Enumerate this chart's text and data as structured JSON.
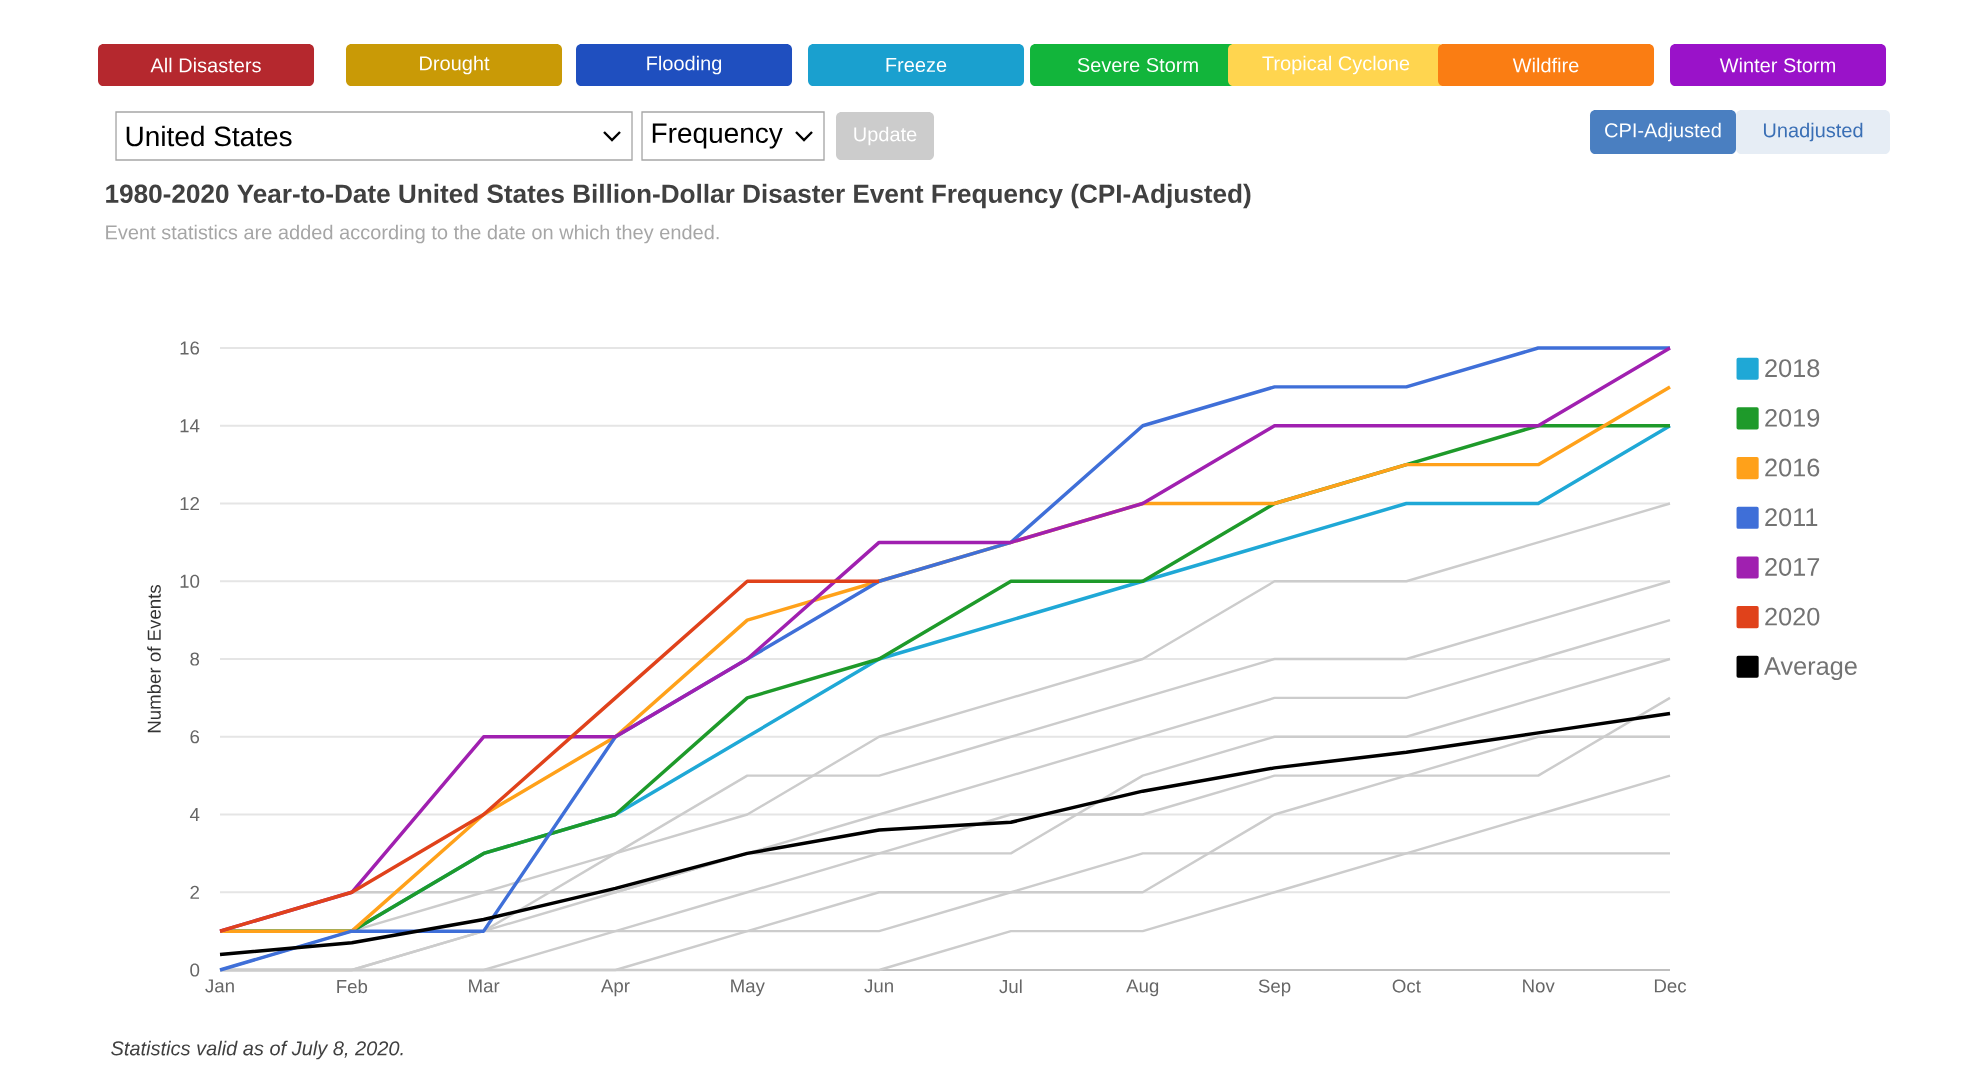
{
  "chart_data": {
    "type": "line",
    "title": "1980-2020 Year-to-Date United States Billion-Dollar Disaster Event Frequency (CPI-Adjusted)",
    "subtitle": "Event statistics are added according to the date on which they ended.",
    "ylabel": "Number of Events",
    "categories": [
      "Jan",
      "Feb",
      "Mar",
      "Apr",
      "May",
      "Jun",
      "Jul",
      "Aug",
      "Sep",
      "Oct",
      "Nov",
      "Dec"
    ],
    "ylim": [
      0,
      16
    ],
    "yticks": [
      0,
      2,
      4,
      6,
      8,
      10,
      12,
      14,
      16
    ],
    "grid": "y",
    "legend": "right",
    "marker": "none",
    "line_style": "solid",
    "series": [
      {
        "color": "#cccccc",
        "values": [
          0,
          0,
          0,
          1,
          1,
          2,
          2,
          3,
          3,
          3,
          4,
          5
        ]
      },
      {
        "color": "#cccccc",
        "values": [
          0,
          1,
          1,
          1,
          2,
          3,
          4,
          4,
          5,
          5,
          6,
          6
        ]
      },
      {
        "color": "#cccccc",
        "values": [
          0,
          0,
          1,
          2,
          3,
          4,
          5,
          6,
          7,
          7,
          8,
          9
        ]
      },
      {
        "color": "#cccccc",
        "values": [
          0,
          1,
          2,
          3,
          5,
          5,
          6,
          7,
          8,
          8,
          9,
          10
        ]
      },
      {
        "color": "#cccccc",
        "values": [
          0,
          0,
          0,
          0,
          1,
          1,
          2,
          2,
          4,
          5,
          5,
          7
        ]
      },
      {
        "color": "#cccccc",
        "values": [
          1,
          2,
          2,
          2,
          3,
          3,
          3,
          5,
          6,
          6,
          7,
          8
        ]
      },
      {
        "color": "#cccccc",
        "values": [
          0,
          0,
          1,
          3,
          4,
          6,
          7,
          8,
          10,
          10,
          11,
          12
        ]
      },
      {
        "color": "#cccccc",
        "values": [
          0,
          0,
          0,
          0,
          0,
          0,
          1,
          1,
          2,
          3,
          3,
          3
        ]
      },
      {
        "name": "2018",
        "color": "#1fa8d6",
        "values": [
          1,
          1,
          3,
          4,
          6,
          8,
          9,
          10,
          11,
          12,
          12,
          14
        ]
      },
      {
        "name": "2019",
        "color": "#1e9a2a",
        "values": [
          1,
          1,
          3,
          4,
          7,
          8,
          10,
          10,
          12,
          13,
          14,
          14
        ]
      },
      {
        "name": "2016",
        "color": "#ffa11a",
        "values": [
          1,
          1,
          4,
          6,
          9,
          10,
          11,
          12,
          12,
          13,
          13,
          15
        ]
      },
      {
        "name": "2011",
        "color": "#3f6fd8",
        "values": [
          0,
          1,
          1,
          6,
          8,
          10,
          11,
          14,
          15,
          15,
          16,
          16
        ]
      },
      {
        "name": "2017",
        "color": "#a020b0",
        "values": [
          1,
          2,
          6,
          6,
          8,
          11,
          11,
          12,
          14,
          14,
          14,
          16
        ]
      },
      {
        "name": "2020",
        "color": "#e0421b",
        "values": [
          1,
          2,
          4,
          7,
          10,
          10,
          null,
          null,
          null,
          null,
          null,
          null
        ]
      },
      {
        "name": "Average",
        "color": "#000000",
        "values": [
          0.4,
          0.7,
          1.3,
          2.1,
          3.0,
          3.6,
          3.8,
          4.6,
          5.2,
          5.6,
          6.1,
          6.6
        ]
      }
    ],
    "annotations": [
      "All Disasters",
      "Drought",
      "Flooding",
      "Freeze",
      "Severe Storm",
      "Tropical Cyclone",
      "Wildfire",
      "Winter Storm",
      "United States",
      "Frequency",
      "Update",
      "CPI-Adjusted",
      "Unadjusted",
      "Statistics valid as of July 8, 2020."
    ]
  }
}
